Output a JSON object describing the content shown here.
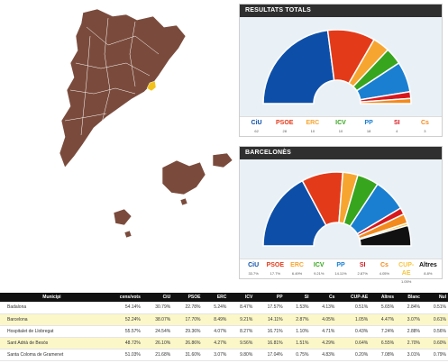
{
  "colors": {
    "map_fill": "#7a4b3c",
    "map_stroke": "#ffffff",
    "highlight": "#f2c21a",
    "panel_header_bg": "#2f2f2f",
    "chart_bg": "#eaf1f6"
  },
  "map": {
    "highlighted_municipality": "Barcelona"
  },
  "totals": {
    "title": "RESULTATS TOTALS",
    "chart_data": {
      "type": "pie",
      "parties": [
        "CiU",
        "PSOE",
        "ERC",
        "ICV",
        "PP",
        "SI",
        "Cs"
      ],
      "seats": [
        62,
        28,
        10,
        10,
        18,
        4,
        3
      ],
      "colors": [
        "#0d4fa8",
        "#e33a1a",
        "#f7a531",
        "#37a51e",
        "#1a7fd1",
        "#d8171d",
        "#f28a1d"
      ]
    },
    "legend": [
      {
        "label": "CiU",
        "sub": "62",
        "color": "#0d4fa8"
      },
      {
        "label": "PSOE",
        "sub": "28",
        "color": "#e33a1a"
      },
      {
        "label": "ERC",
        "sub": "10",
        "color": "#f7a531"
      },
      {
        "label": "ICV",
        "sub": "10",
        "color": "#37a51e"
      },
      {
        "label": "PP",
        "sub": "18",
        "color": "#1a7fd1"
      },
      {
        "label": "SI",
        "sub": "4",
        "color": "#d8171d"
      },
      {
        "label": "Cs",
        "sub": "3",
        "color": "#f28a1d"
      }
    ]
  },
  "barcelones": {
    "title": "BARCELONÈS",
    "chart_data": {
      "type": "pie",
      "parties": [
        "CiU",
        "PSOE",
        "ERC",
        "ICV",
        "PP",
        "SI",
        "Cs",
        "CUP-AE",
        "Altres"
      ],
      "seats": [
        33.7,
        17.7,
        6.49,
        9.21,
        14.11,
        2.87,
        4.05,
        1.05,
        8.8
      ],
      "colors": [
        "#0d4fa8",
        "#e33a1a",
        "#f7a531",
        "#37a51e",
        "#1a7fd1",
        "#d8171d",
        "#f28a1d",
        "#f5c542",
        "#111111"
      ]
    },
    "legend": [
      {
        "label": "CiU",
        "sub": "33.7%",
        "color": "#0d4fa8"
      },
      {
        "label": "PSOE",
        "sub": "17.7%",
        "color": "#e33a1a"
      },
      {
        "label": "ERC",
        "sub": "6.49%",
        "color": "#f7a531"
      },
      {
        "label": "ICV",
        "sub": "9.21%",
        "color": "#37a51e"
      },
      {
        "label": "PP",
        "sub": "14.11%",
        "color": "#1a7fd1"
      },
      {
        "label": "SI",
        "sub": "2.87%",
        "color": "#d8171d"
      },
      {
        "label": "Cs",
        "sub": "4.05%",
        "color": "#f28a1d"
      },
      {
        "label": "CUP-AE",
        "sub": "1.05%",
        "color": "#f5c542"
      },
      {
        "label": "Altres",
        "sub": "8.8%",
        "color": "#111111"
      }
    ]
  },
  "table": {
    "headers": [
      "Municipi",
      "cens/vots",
      "CiU",
      "PSOE",
      "ERC",
      "ICV",
      "PP",
      "SI",
      "Cs",
      "CUP-AE",
      "Altres",
      "Blanc",
      "Nul"
    ],
    "rows": [
      [
        "Badalona",
        "54.14%",
        "30.79%",
        "22.78%",
        "5.24%",
        "8.47%",
        "17.57%",
        "1.53%",
        "4.13%",
        "0.51%",
        "5.65%",
        "2.84%",
        "0.51%"
      ],
      [
        "Barcelona",
        "52.24%",
        "38.07%",
        "17.70%",
        "8.49%",
        "9.21%",
        "14.11%",
        "2.87%",
        "4.05%",
        "1.05%",
        "4.47%",
        "3.07%",
        "0.61%"
      ],
      [
        "Hospitalet de Llobregat",
        "55.57%",
        "24.54%",
        "29.36%",
        "4.07%",
        "8.27%",
        "16.71%",
        "1.10%",
        "4.71%",
        "0.43%",
        "7.24%",
        "2.88%",
        "0.56%"
      ],
      [
        "Sant Adrià de Besòs",
        "48.72%",
        "26.10%",
        "26.86%",
        "4.27%",
        "9.56%",
        "16.81%",
        "1.51%",
        "4.29%",
        "0.64%",
        "6.55%",
        "2.70%",
        "0.60%"
      ],
      [
        "Santa Coloma de Gramenet",
        "51.03%",
        "21.68%",
        "31.60%",
        "3.07%",
        "9.80%",
        "17.04%",
        "0.75%",
        "4.83%",
        "0.20%",
        "7.08%",
        "3.01%",
        "0.79%"
      ]
    ]
  }
}
